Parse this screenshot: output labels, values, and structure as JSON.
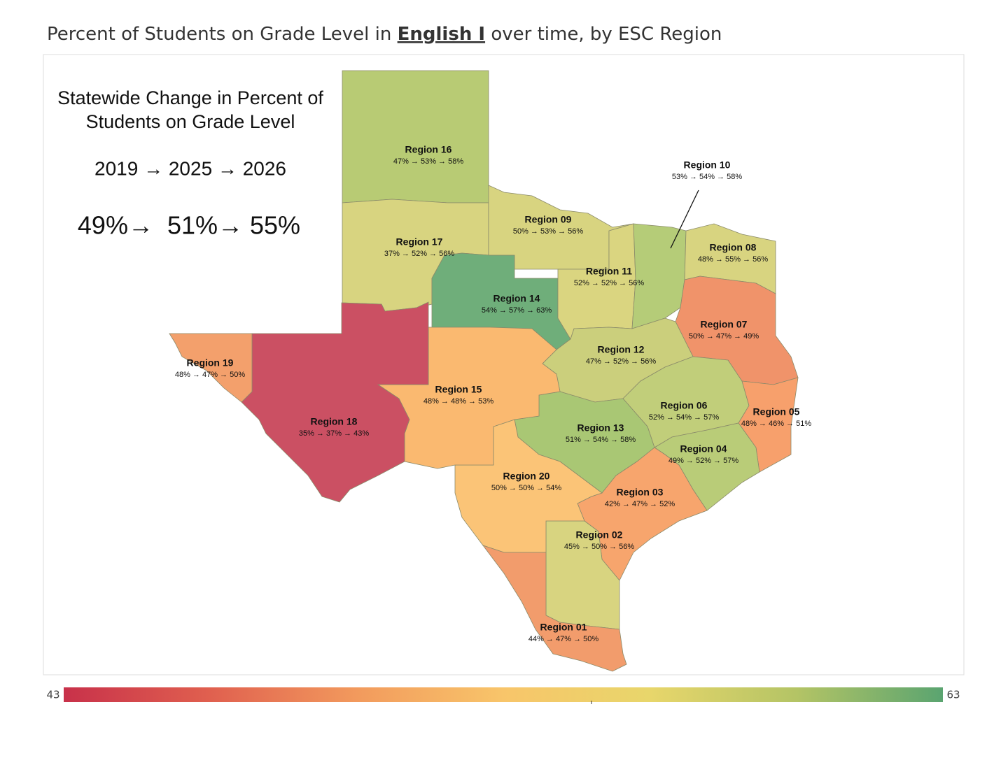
{
  "header": {
    "title_before": "Percent of Students on Grade Level in ",
    "title_subject": "English I",
    "title_after": " over time, by ESC Region"
  },
  "statewide": {
    "title_line1": "Statewide Change in Percent of",
    "title_line2": "Students on Grade Level",
    "years": "2019 → 2025 → 2026",
    "values": "49%→  51%→ 55%"
  },
  "regions": [
    {
      "name": "Region 16",
      "label": "47% → 53% → 58%",
      "color": "#b8cb74"
    },
    {
      "name": "Region 17",
      "label": "37% → 52% → 56%",
      "color": "#d8d480"
    },
    {
      "name": "Region 09",
      "label": "50% → 53% → 56%",
      "color": "#d8d480"
    },
    {
      "name": "Region 14",
      "label": "54% → 57% → 63%",
      "color": "#6fae7a"
    },
    {
      "name": "Region 11",
      "label": "52% → 52% → 56%",
      "color": "#dad580"
    },
    {
      "name": "Region 10",
      "label": "53% → 54% → 58%",
      "color": "#b5cc78"
    },
    {
      "name": "Region 08",
      "label": "48% → 55% → 56%",
      "color": "#d8d480"
    },
    {
      "name": "Region 07",
      "label": "50% → 47% → 49%",
      "color": "#f0936a"
    },
    {
      "name": "Region 12",
      "label": "47% → 52% → 56%",
      "color": "#cbcf7c"
    },
    {
      "name": "Region 06",
      "label": "52% → 54% → 57%",
      "color": "#c1ce7a"
    },
    {
      "name": "Region 05",
      "label": "48% → 46% → 51%",
      "color": "#f7a06c"
    },
    {
      "name": "Region 04",
      "label": "49% → 52% → 57%",
      "color": "#b9cc78"
    },
    {
      "name": "Region 13",
      "label": "51% → 54% → 58%",
      "color": "#a9c774"
    },
    {
      "name": "Region 03",
      "label": "42% → 47% → 52%",
      "color": "#f7a56d"
    },
    {
      "name": "Region 02",
      "label": "45% → 50% → 56%",
      "color": "#d8d480"
    },
    {
      "name": "Region 20",
      "label": "50% → 50% → 54%",
      "color": "#fbc477"
    },
    {
      "name": "Region 01",
      "label": "44% → 47% → 50%",
      "color": "#f29c6c"
    },
    {
      "name": "Region 15",
      "label": "48% → 48% → 53%",
      "color": "#fab970"
    },
    {
      "name": "Region 18",
      "label": "35% → 37% → 43%",
      "color": "#cb5063"
    },
    {
      "name": "Region 19",
      "label": "48% → 47% → 50%",
      "color": "#f3a06c"
    }
  ],
  "legend": {
    "min": 43,
    "max": 63,
    "colors": [
      "#c8314a",
      "#e0604f",
      "#f29a5d",
      "#f8c56a",
      "#e8d66b",
      "#b4c465",
      "#5aa470"
    ]
  }
}
